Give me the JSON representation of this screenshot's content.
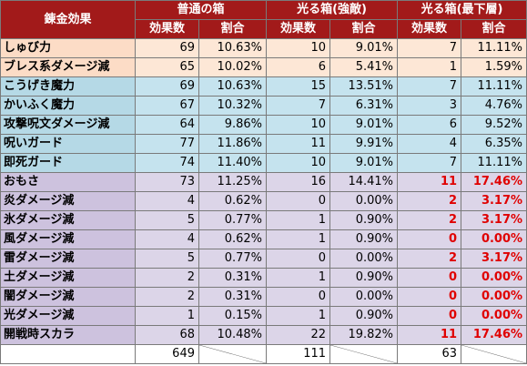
{
  "header": {
    "col_effect": "錬金効果",
    "groups": [
      "普通の箱",
      "光る箱(強敵)",
      "光る箱(最下層)"
    ],
    "sub_count": "効果数",
    "sub_ratio": "割合"
  },
  "rows": [
    {
      "name": "しゅび力",
      "group": "orange",
      "a": "69",
      "ap": "10.63%",
      "b": "10",
      "bp": "9.01%",
      "c": "7",
      "cp": "11.11%",
      "red": false
    },
    {
      "name": "ブレス系ダメージ減",
      "group": "orange",
      "a": "65",
      "ap": "10.02%",
      "b": "6",
      "bp": "5.41%",
      "c": "1",
      "cp": "1.59%",
      "red": false
    },
    {
      "name": "こうげき魔力",
      "group": "blue",
      "a": "69",
      "ap": "10.63%",
      "b": "15",
      "bp": "13.51%",
      "c": "7",
      "cp": "11.11%",
      "red": false
    },
    {
      "name": "かいふく魔力",
      "group": "blue",
      "a": "67",
      "ap": "10.32%",
      "b": "7",
      "bp": "6.31%",
      "c": "3",
      "cp": "4.76%",
      "red": false
    },
    {
      "name": "攻撃呪文ダメージ減",
      "group": "blue",
      "a": "64",
      "ap": "9.86%",
      "b": "10",
      "bp": "9.01%",
      "c": "6",
      "cp": "9.52%",
      "red": false
    },
    {
      "name": "呪いガード",
      "group": "blue",
      "a": "77",
      "ap": "11.86%",
      "b": "11",
      "bp": "9.91%",
      "c": "4",
      "cp": "6.35%",
      "red": false
    },
    {
      "name": "即死ガード",
      "group": "blue",
      "a": "74",
      "ap": "11.40%",
      "b": "10",
      "bp": "9.01%",
      "c": "7",
      "cp": "11.11%",
      "red": false
    },
    {
      "name": "おもさ",
      "group": "purple",
      "a": "73",
      "ap": "11.25%",
      "b": "16",
      "bp": "14.41%",
      "c": "11",
      "cp": "17.46%",
      "red": true
    },
    {
      "name": "炎ダメージ減",
      "group": "purple",
      "a": "4",
      "ap": "0.62%",
      "b": "0",
      "bp": "0.00%",
      "c": "2",
      "cp": "3.17%",
      "red": true
    },
    {
      "name": "氷ダメージ減",
      "group": "purple",
      "a": "5",
      "ap": "0.77%",
      "b": "1",
      "bp": "0.90%",
      "c": "2",
      "cp": "3.17%",
      "red": true
    },
    {
      "name": "風ダメージ減",
      "group": "purple",
      "a": "4",
      "ap": "0.62%",
      "b": "1",
      "bp": "0.90%",
      "c": "0",
      "cp": "0.00%",
      "red": true
    },
    {
      "name": "雷ダメージ減",
      "group": "purple",
      "a": "5",
      "ap": "0.77%",
      "b": "0",
      "bp": "0.00%",
      "c": "2",
      "cp": "3.17%",
      "red": true
    },
    {
      "name": "土ダメージ減",
      "group": "purple",
      "a": "2",
      "ap": "0.31%",
      "b": "1",
      "bp": "0.90%",
      "c": "0",
      "cp": "0.00%",
      "red": true
    },
    {
      "name": "闇ダメージ減",
      "group": "purple",
      "a": "2",
      "ap": "0.31%",
      "b": "0",
      "bp": "0.00%",
      "c": "0",
      "cp": "0.00%",
      "red": true
    },
    {
      "name": "光ダメージ減",
      "group": "purple",
      "a": "1",
      "ap": "0.15%",
      "b": "1",
      "bp": "0.90%",
      "c": "0",
      "cp": "0.00%",
      "red": true
    },
    {
      "name": "開戦時スカラ",
      "group": "purple",
      "a": "68",
      "ap": "10.48%",
      "b": "22",
      "bp": "19.82%",
      "c": "11",
      "cp": "17.46%",
      "red": true
    }
  ],
  "totals": {
    "a": "649",
    "b": "111",
    "c": "63"
  },
  "colors": {
    "header_bg": "#a21a1a",
    "orange": "#fde7d6",
    "blue": "#c5e3ee",
    "purple": "#dcd5e8",
    "highlight": "#e00000"
  }
}
